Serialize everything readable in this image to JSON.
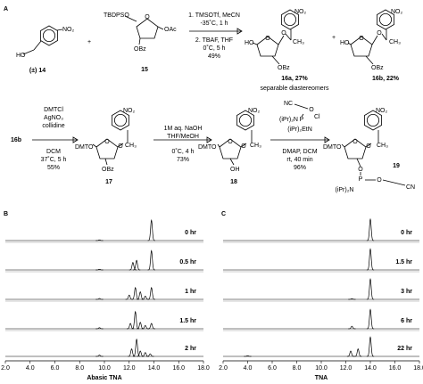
{
  "scheme": {
    "texts": [
      "A",
      "NO₂",
      "HO",
      "(±) 14",
      "+",
      "TBDPSO",
      "O",
      "OAc",
      "OBz",
      "15",
      "1. TMSOTf, MeCN",
      "-35˚C, 1 h",
      "2. TBAF, THF",
      "0˚C, 5 h",
      "49%",
      "NO₂",
      "HO",
      "O",
      "O",
      "CH₃",
      "OBz",
      "16a, 27%",
      "+",
      "NO₂",
      "HO",
      "O",
      "O",
      "CH₃",
      "OBz",
      "16b, 22%",
      "separable diastereomers",
      "16b",
      "DMTCl",
      "AgNO₃",
      "collidine",
      "DCM",
      "37˚C, 5 h",
      "55%",
      "NO₂",
      "DMTO",
      "O",
      "O",
      "CH₃",
      "OBz",
      "17",
      "1M aq. NaOH",
      "THF/MeOH",
      "0˚C, 4 h",
      "73%",
      "NO₂",
      "DMTO",
      "O",
      "O",
      "CH₃",
      "OH",
      "18",
      "NC",
      "O",
      "Cl",
      "P",
      "(iPr)₂N",
      "(iPr)₂EtN",
      "DMAP, DCM",
      "rt, 40 min",
      "96%",
      "NO₂",
      "DMTO",
      "O",
      "O",
      "CH₃",
      "O",
      "P",
      "(iPr)₂N",
      "O",
      "CN",
      "19"
    ]
  },
  "chart_data": [
    {
      "type": "chromatogram",
      "panel": "B",
      "xlabel": "Abasic TNA",
      "xlim": [
        2,
        18
      ],
      "xticks": [
        {
          "value": 2,
          "label": "2.0"
        },
        {
          "value": 4,
          "label": "4.0"
        },
        {
          "value": 6,
          "label": "6.0"
        },
        {
          "value": 8,
          "label": "8.0"
        },
        {
          "value": 10,
          "label": "10.0"
        },
        {
          "value": 12,
          "label": "12.0"
        },
        {
          "value": 14,
          "label": "14.0"
        },
        {
          "value": 16,
          "label": "16.0"
        },
        {
          "value": 18,
          "label": "18.0"
        }
      ],
      "series": [
        {
          "name": "0 hr",
          "color": "#000000",
          "x": [
            9.6,
            13.8
          ],
          "values": [
            3,
            95
          ]
        },
        {
          "name": "0.5 hr",
          "color": "#000000",
          "x": [
            9.6,
            12.3,
            12.6,
            13.8
          ],
          "values": [
            3,
            35,
            45,
            90
          ]
        },
        {
          "name": "1 hr",
          "color": "#000000",
          "x": [
            9.6,
            12.0,
            12.5,
            12.9,
            13.3,
            13.8
          ],
          "values": [
            4,
            20,
            55,
            35,
            15,
            55
          ]
        },
        {
          "name": "1.5 hr",
          "color": "#000000",
          "x": [
            9.6,
            12.1,
            12.5,
            12.9,
            13.3,
            13.8
          ],
          "values": [
            5,
            25,
            80,
            30,
            15,
            25
          ]
        },
        {
          "name": "2 hr",
          "color": "#000000",
          "x": [
            9.6,
            12.2,
            12.6,
            12.9,
            13.3,
            13.7
          ],
          "values": [
            6,
            35,
            80,
            25,
            18,
            12
          ]
        }
      ]
    },
    {
      "type": "chromatogram",
      "panel": "C",
      "xlabel": "TNA",
      "xlim": [
        2,
        18
      ],
      "xticks": [
        {
          "value": 2,
          "label": "2.0"
        },
        {
          "value": 4,
          "label": "4.0"
        },
        {
          "value": 6,
          "label": "6.0"
        },
        {
          "value": 8,
          "label": "8.0"
        },
        {
          "value": 10,
          "label": "10.0"
        },
        {
          "value": 12,
          "label": "12.0"
        },
        {
          "value": 14,
          "label": "14.0"
        },
        {
          "value": 16,
          "label": "16.0"
        },
        {
          "value": 18,
          "label": "18.0"
        }
      ],
      "series": [
        {
          "name": "0 hr",
          "color": "#000000",
          "x": [
            14.0
          ],
          "values": [
            100
          ]
        },
        {
          "name": "1.5 hr",
          "color": "#000000",
          "x": [
            14.0
          ],
          "values": [
            98
          ]
        },
        {
          "name": "3 hr",
          "color": "#000000",
          "x": [
            12.5,
            14.0
          ],
          "values": [
            3,
            95
          ]
        },
        {
          "name": "6 hr",
          "color": "#000000",
          "x": [
            12.5,
            14.0
          ],
          "values": [
            12,
            90
          ]
        },
        {
          "name": "22 hr",
          "color": "#000000",
          "x": [
            4.0,
            12.4,
            13.0,
            14.0
          ],
          "values": [
            3,
            25,
            35,
            90
          ]
        }
      ]
    }
  ]
}
